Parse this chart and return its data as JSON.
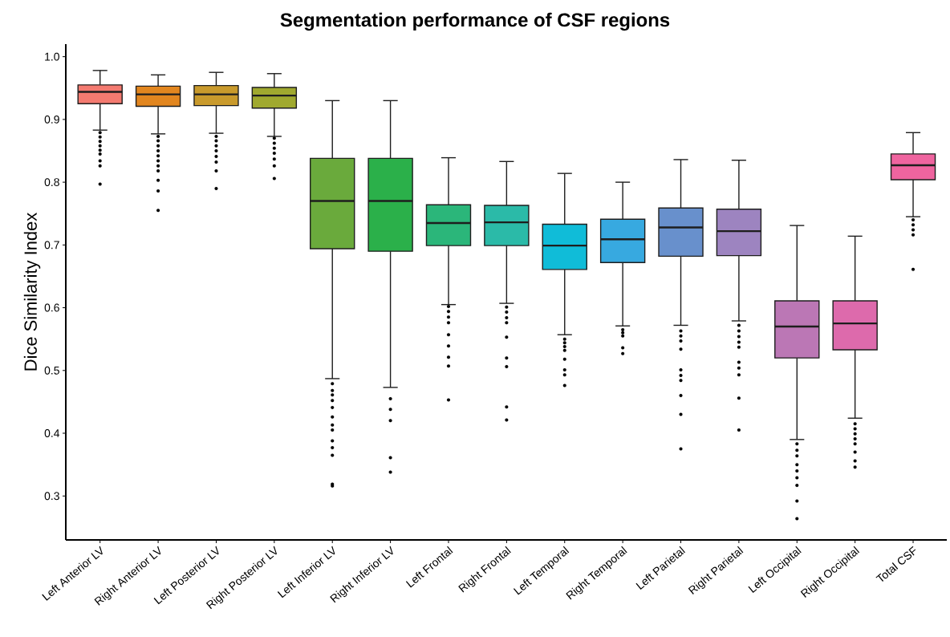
{
  "chart_data": {
    "type": "box",
    "title": "Segmentation performance of CSF regions",
    "ylabel": "Dice Similarity Index",
    "categories": [
      "Left Anterior LV",
      "Right Anterior LV",
      "Left Posterior LV",
      "Right Posterior LV",
      "Left Inferior LV",
      "Right Inferior LV",
      "Left Frontal",
      "Right Frontal",
      "Left Temporal",
      "Right Temporal",
      "Left Parietal",
      "Right Parietal",
      "Left Occipital",
      "Right Occipital",
      "Total CSF"
    ],
    "colors": [
      "#f47a70",
      "#e2861f",
      "#c99a2c",
      "#a0a92f",
      "#6aaa3c",
      "#2bb04a",
      "#2bb67a",
      "#2bbaa8",
      "#10bcd8",
      "#37a9e0",
      "#6890cc",
      "#9d84c0",
      "#bb77b5",
      "#dd6aac",
      "#ef649f"
    ],
    "boxes": [
      {
        "low": 0.883,
        "q1": 0.925,
        "median": 0.944,
        "q3": 0.955,
        "high": 0.978,
        "outliers": [
          0.879,
          0.872,
          0.865,
          0.858,
          0.851,
          0.845,
          0.834,
          0.826,
          0.797
        ]
      },
      {
        "low": 0.877,
        "q1": 0.921,
        "median": 0.94,
        "q3": 0.953,
        "high": 0.971,
        "outliers": [
          0.873,
          0.866,
          0.858,
          0.85,
          0.842,
          0.834,
          0.826,
          0.818,
          0.803,
          0.786,
          0.755
        ]
      },
      {
        "low": 0.878,
        "q1": 0.922,
        "median": 0.94,
        "q3": 0.954,
        "high": 0.975,
        "outliers": [
          0.873,
          0.866,
          0.858,
          0.85,
          0.841,
          0.832,
          0.818,
          0.79
        ]
      },
      {
        "low": 0.873,
        "q1": 0.918,
        "median": 0.938,
        "q3": 0.951,
        "high": 0.973,
        "outliers": [
          0.87,
          0.862,
          0.854,
          0.846,
          0.837,
          0.826,
          0.806
        ]
      },
      {
        "low": 0.487,
        "q1": 0.694,
        "median": 0.77,
        "q3": 0.838,
        "high": 0.93,
        "outliers": [
          0.479,
          0.468,
          0.461,
          0.452,
          0.441,
          0.426,
          0.413,
          0.405,
          0.388,
          0.377,
          0.365,
          0.319,
          0.316
        ]
      },
      {
        "low": 0.473,
        "q1": 0.69,
        "median": 0.77,
        "q3": 0.838,
        "high": 0.93,
        "outliers": [
          0.455,
          0.438,
          0.42,
          0.361,
          0.338
        ]
      },
      {
        "low": 0.605,
        "q1": 0.699,
        "median": 0.735,
        "q3": 0.764,
        "high": 0.839,
        "outliers": [
          0.602,
          0.594,
          0.585,
          0.576,
          0.557,
          0.539,
          0.521,
          0.507,
          0.453
        ]
      },
      {
        "low": 0.607,
        "q1": 0.699,
        "median": 0.736,
        "q3": 0.763,
        "high": 0.833,
        "outliers": [
          0.601,
          0.593,
          0.584,
          0.576,
          0.553,
          0.52,
          0.506,
          0.442,
          0.421
        ]
      },
      {
        "low": 0.557,
        "q1": 0.661,
        "median": 0.699,
        "q3": 0.733,
        "high": 0.814,
        "outliers": [
          0.55,
          0.544,
          0.538,
          0.532,
          0.518,
          0.501,
          0.493,
          0.476
        ]
      },
      {
        "low": 0.571,
        "q1": 0.672,
        "median": 0.709,
        "q3": 0.741,
        "high": 0.8,
        "outliers": [
          0.565,
          0.56,
          0.555,
          0.536,
          0.527
        ]
      },
      {
        "low": 0.572,
        "q1": 0.682,
        "median": 0.728,
        "q3": 0.759,
        "high": 0.836,
        "outliers": [
          0.563,
          0.555,
          0.547,
          0.534,
          0.501,
          0.492,
          0.484,
          0.46,
          0.43,
          0.375
        ]
      },
      {
        "low": 0.579,
        "q1": 0.683,
        "median": 0.722,
        "q3": 0.757,
        "high": 0.835,
        "outliers": [
          0.572,
          0.563,
          0.554,
          0.545,
          0.537,
          0.513,
          0.504,
          0.493,
          0.456,
          0.405
        ]
      },
      {
        "low": 0.39,
        "q1": 0.52,
        "median": 0.57,
        "q3": 0.611,
        "high": 0.731,
        "outliers": [
          0.383,
          0.373,
          0.364,
          0.35,
          0.34,
          0.329,
          0.317,
          0.292,
          0.264
        ]
      },
      {
        "low": 0.424,
        "q1": 0.533,
        "median": 0.575,
        "q3": 0.611,
        "high": 0.714,
        "outliers": [
          0.415,
          0.407,
          0.399,
          0.391,
          0.383,
          0.37,
          0.356,
          0.346
        ]
      },
      {
        "low": 0.745,
        "q1": 0.804,
        "median": 0.827,
        "q3": 0.845,
        "high": 0.879,
        "outliers": [
          0.74,
          0.732,
          0.724,
          0.716,
          0.661
        ]
      }
    ],
    "ylim": [
      0.23,
      1.02
    ],
    "yticks": [
      0.3,
      0.4,
      0.5,
      0.6,
      0.7,
      0.8,
      0.9,
      {
        "value": 1,
        "label": "1.0"
      }
    ]
  }
}
